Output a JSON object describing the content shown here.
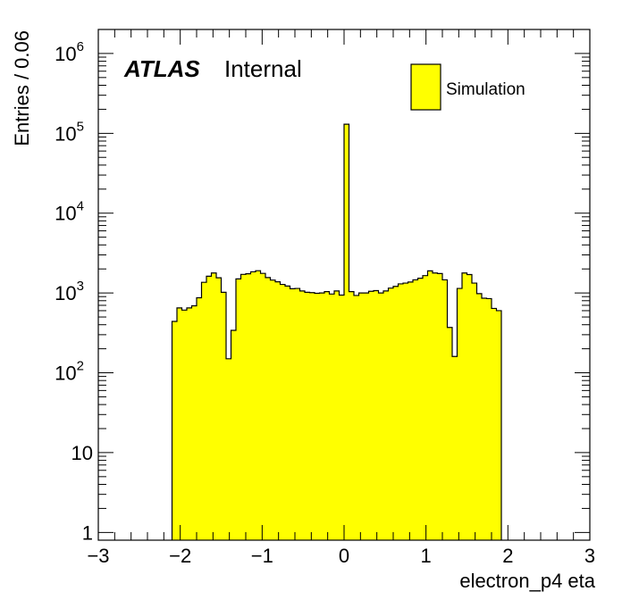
{
  "chart_data": {
    "type": "bar",
    "title": "",
    "xlabel": "electron_p4 eta",
    "ylabel": "Entries / 0.06",
    "label_bold": "ATLAS",
    "label_normal": "Internal",
    "xlim": [
      -3,
      3
    ],
    "ylim": [
      0.8,
      2000000
    ],
    "yscale": "log",
    "bin_width": 0.06,
    "x_ticks": [
      "−3",
      "−2",
      "−1",
      "0",
      "1",
      "2",
      "3"
    ],
    "x_tick_values": [
      -3,
      -2,
      -1,
      0,
      1,
      2,
      3
    ],
    "y_ticks": [
      {
        "value": 1,
        "base": "1",
        "exp": ""
      },
      {
        "value": 10,
        "base": "10",
        "exp": ""
      },
      {
        "value": 100,
        "base": "10",
        "exp": "2"
      },
      {
        "value": 1000,
        "base": "10",
        "exp": "3"
      },
      {
        "value": 10000,
        "base": "10",
        "exp": "4"
      },
      {
        "value": 100000,
        "base": "10",
        "exp": "5"
      },
      {
        "value": 1000000,
        "base": "10",
        "exp": "6"
      }
    ],
    "fill_color": "#ffff00",
    "line_color": "#000000",
    "legend_position": "top-right",
    "series": [
      {
        "name": "Simulation",
        "x_start": -2.1,
        "values": [
          440,
          650,
          610,
          650,
          690,
          870,
          1360,
          1620,
          1780,
          1550,
          1020,
          150,
          340,
          1500,
          1710,
          1740,
          1840,
          1900,
          1760,
          1560,
          1450,
          1380,
          1280,
          1220,
          1130,
          1140,
          1060,
          1020,
          1010,
          990,
          1000,
          1040,
          970,
          1060,
          940,
          130000,
          1040,
          930,
          1000,
          1000,
          1050,
          1070,
          1000,
          1060,
          1150,
          1210,
          1300,
          1330,
          1370,
          1460,
          1530,
          1650,
          1890,
          1780,
          1750,
          1460,
          370,
          160,
          1140,
          1780,
          1700,
          1330,
          980,
          860,
          850,
          640,
          600
        ]
      }
    ]
  }
}
